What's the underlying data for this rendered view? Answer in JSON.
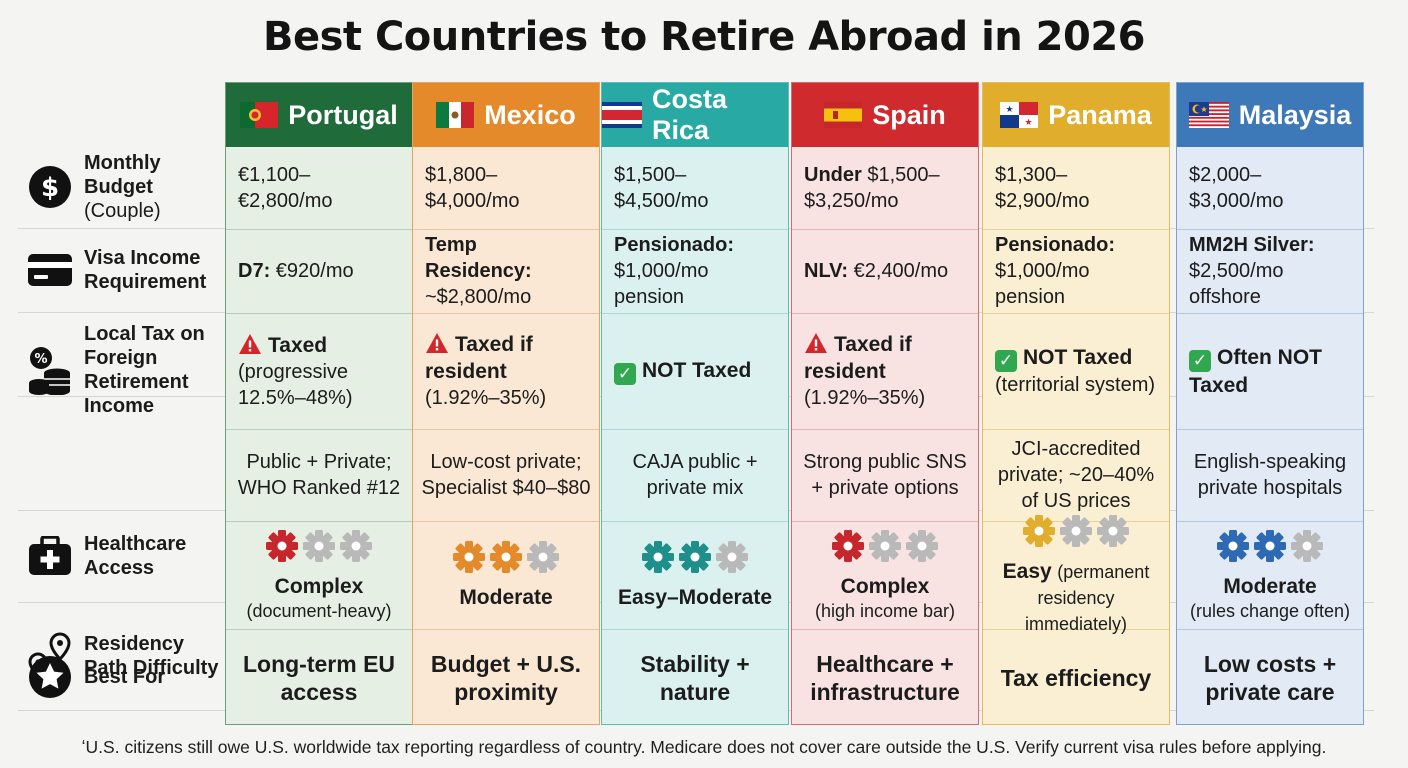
{
  "title": "Best Countries to Retire Abroad in 2026",
  "colors": {
    "portugal": "#1f6b3a",
    "mexico": "#e48a2b",
    "costa_rica": "#28a9a4",
    "spain": "#cf2a2e",
    "panama": "#e0ad2c",
    "malaysia": "#3d78b9"
  },
  "rows": {
    "budget": {
      "icon": "dollar-icon",
      "label": "Monthly Budget",
      "sub": "(Couple)"
    },
    "visa": {
      "icon": "credit-card-icon",
      "label": "Visa Income Requirement"
    },
    "tax": {
      "icon": "coins-percent-icon",
      "label": "Local Tax on Foreign Retirement Income"
    },
    "health": {
      "icon": "medical-kit-icon",
      "label": "Healthcare Access"
    },
    "residency": {
      "icon": "location-path-icon",
      "label": "Residency Path Difficulty"
    },
    "best": {
      "icon": "star-icon",
      "label": "Best For"
    }
  },
  "countries": [
    {
      "name": "Portugal",
      "flag": "portugal-flag-icon",
      "budget": [
        "€1,100–",
        "€2,800/mo"
      ],
      "budget_prefix": "",
      "visa_bold": "D7:",
      "visa_rest": " €920/mo",
      "tax_status": "warning",
      "tax_main": "Taxed",
      "tax_sub": "(progressive 12.5%–48%)",
      "health": "Public + Private; WHO Ranked #12",
      "gears_filled": 1,
      "difficulty": "Complex",
      "difficulty_note": "(document-heavy)",
      "best_for": "Long-term EU access"
    },
    {
      "name": "Mexico",
      "flag": "mexico-flag-icon",
      "budget": [
        "$1,800–",
        "$4,000/mo"
      ],
      "budget_prefix": "",
      "visa_bold": "Temp Residency:",
      "visa_rest": "~$2,800/mo",
      "tax_status": "warning",
      "tax_main": "Taxed if resident",
      "tax_sub": "(1.92%–35%)",
      "health": "Low-cost private; Specialist $40–$80",
      "gears_filled": 2,
      "difficulty": "Moderate",
      "difficulty_note": "",
      "best_for": "Budget + U.S. proximity"
    },
    {
      "name": "Costa Rica",
      "flag": "costa-rica-flag-icon",
      "budget": [
        "$1,500–",
        "$4,500/mo"
      ],
      "budget_prefix": "",
      "visa_bold": "Pensionado:",
      "visa_rest": "$1,000/mo pension",
      "tax_status": "ok",
      "tax_main": "NOT Taxed",
      "tax_sub": "",
      "health": "CAJA public + private mix",
      "gears_filled": 2,
      "difficulty": "Easy–Moderate",
      "difficulty_note": "",
      "best_for": "Stability + nature"
    },
    {
      "name": "Spain",
      "flag": "spain-flag-icon",
      "budget": [
        "$1,500–",
        "$3,250/mo"
      ],
      "budget_prefix": "Under",
      "visa_bold": "NLV:",
      "visa_rest": " €2,400/mo",
      "tax_status": "warning",
      "tax_main": "Taxed if resident",
      "tax_sub": "(1.92%–35%)",
      "health": "Strong public SNS + private options",
      "gears_filled": 1,
      "difficulty": "Complex",
      "difficulty_note": "(high income bar)",
      "best_for": "Healthcare + infrastructure"
    },
    {
      "name": "Panama",
      "flag": "panama-flag-icon",
      "budget": [
        "$1,300–",
        "$2,900/mo"
      ],
      "budget_prefix": "",
      "visa_bold": "Pensionado:",
      "visa_rest": "$1,000/mo pension",
      "tax_status": "ok",
      "tax_main": "NOT Taxed",
      "tax_sub": "(territorial system)",
      "health": "JCI-accredited private; ~20–40% of US prices",
      "gears_filled": 1,
      "difficulty": "Easy",
      "difficulty_note": "(permanent residency immediately)",
      "best_for": "Tax efficiency"
    },
    {
      "name": "Malaysia",
      "flag": "malaysia-flag-icon",
      "budget": [
        "$2,000–",
        "$3,000/mo"
      ],
      "budget_prefix": "",
      "visa_bold": "MM2H Silver:",
      "visa_rest": "$2,500/mo offshore",
      "tax_status": "ok",
      "tax_main": "Often NOT Taxed",
      "tax_sub": "",
      "health": "English-speaking private hospitals",
      "gears_filled": 2,
      "difficulty": "Moderate",
      "difficulty_note": "(rules change often)",
      "best_for": "Low costs + private care"
    }
  ],
  "footnote": "ʻU.S. citizens still owe U.S. worldwide tax reporting regardless of country. Medicare does not cover care outside the U.S. Verify current visa rules before applying."
}
